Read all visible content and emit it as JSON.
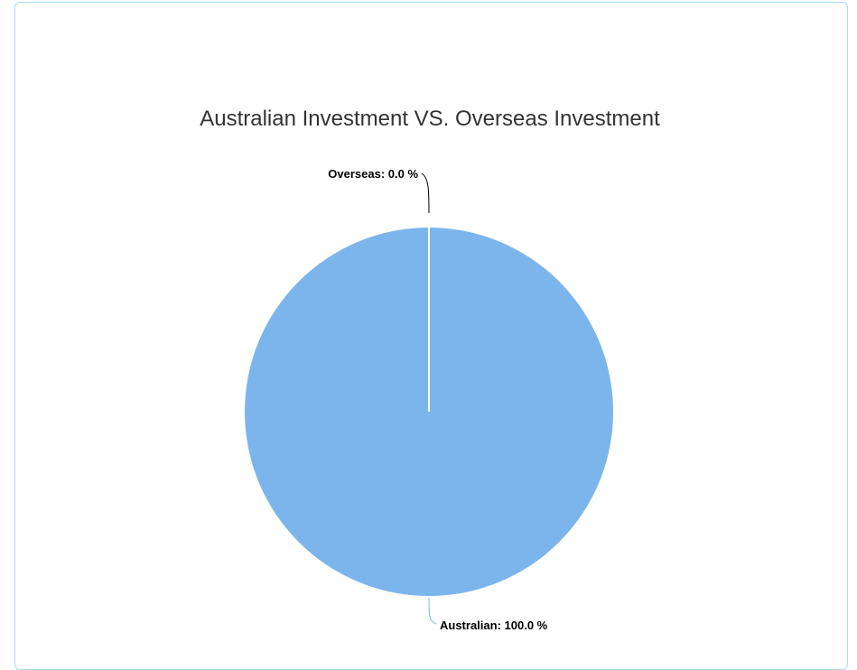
{
  "chart_data": {
    "type": "pie",
    "title": "Australian Investment VS. Overseas Investment",
    "slices": [
      {
        "name": "Overseas",
        "value": 0.0,
        "label": "Overseas: 0.0 %",
        "color": "#7cb5ec"
      },
      {
        "name": "Australian",
        "value": 100.0,
        "label": "Australian: 100.0 %",
        "color": "#7cb5ec"
      }
    ],
    "slice_border_color": "#ffffff",
    "connector_color": "#7cb5ec",
    "zero_connector_color": "#000000"
  }
}
